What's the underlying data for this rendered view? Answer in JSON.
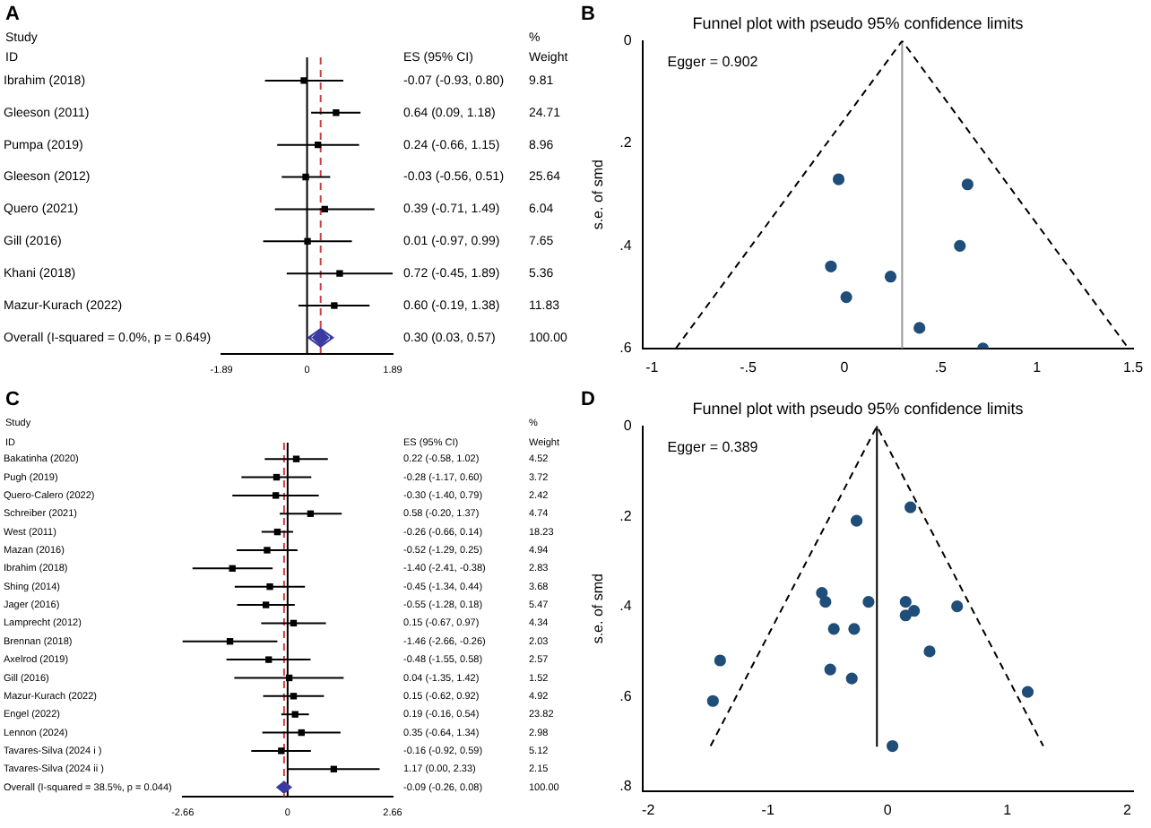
{
  "chart_data": [
    {
      "type": "scatter",
      "orientation": "horizontal",
      "categories": [
        "Ibrahim (2018)",
        "Gleeson (2011)",
        "Pumpa (2019)",
        "Gleeson (2012)",
        "Quero (2021)",
        "Gill (2016)",
        "Khani (2018)",
        "Mazur-Kurach (2022)",
        "Overall (I-squared = 0.0%, p = 0.649)"
      ],
      "series": [
        {
          "color": "#000000",
          "marker": "square",
          "values": [
            -0.07,
            0.64,
            0.24,
            -0.03,
            0.39,
            0.01,
            0.72,
            0.6,
            null
          ],
          "errors": [
            [
              -0.93,
              0.8
            ],
            [
              0.09,
              1.18
            ],
            [
              -0.66,
              1.15
            ],
            [
              -0.56,
              0.51
            ],
            [
              -0.71,
              1.49
            ],
            [
              -0.97,
              0.99
            ],
            [
              -0.45,
              1.89
            ],
            [
              -0.19,
              1.38
            ],
            null
          ]
        },
        {
          "color": "#3a3aa0",
          "values": [
            null,
            null,
            null,
            null,
            null,
            null,
            null,
            null,
            0.3
          ],
          "errors": [
            null,
            null,
            null,
            null,
            null,
            null,
            null,
            null,
            [
              0.03,
              0.57
            ]
          ]
        }
      ],
      "xlim": [
        -1.89,
        1.89
      ],
      "xticks": [
        -1.89,
        0,
        1.89
      ],
      "ref_lines": [
        {
          "axis": "x",
          "value": 0,
          "color": "#000000"
        },
        {
          "axis": "x",
          "value": 0.3,
          "color": "#d04040",
          "line_style": "dashed"
        }
      ],
      "annotations": [
        "A",
        "Study",
        "ID",
        "ES (95% CI)",
        "%",
        "Weight",
        "-0.07 (-0.93, 0.80)",
        "0.64 (0.09, 1.18)",
        "0.24 (-0.66, 1.15)",
        "-0.03 (-0.56, 0.51)",
        "0.39 (-0.71, 1.49)",
        "0.01 (-0.97, 0.99)",
        "0.72 (-0.45, 1.89)",
        "0.60 (-0.19, 1.38)",
        "0.30 (0.03, 0.57)",
        "9.81",
        "24.71",
        "8.96",
        "25.64",
        "6.04",
        "7.65",
        "5.36",
        "11.83",
        "100.00"
      ]
    },
    {
      "type": "scatter",
      "title": "Funnel plot with pseudo 95% confidence limits",
      "ylabel": "s.e. of smd",
      "series": [
        {
          "color": "#1f4e79",
          "marker": "circle",
          "x": [
            -0.07,
            0.64,
            0.24,
            -0.03,
            0.39,
            0.01,
            0.72,
            0.6
          ],
          "values": [
            0.44,
            0.28,
            0.46,
            0.27,
            0.56,
            0.5,
            0.6,
            0.4
          ]
        },
        {
          "type": "line",
          "color": "#000000",
          "marker": "none",
          "line_style": "dashed",
          "x": [
            -0.876,
            0.3,
            1.476
          ],
          "values": [
            0.6,
            0,
            0.6
          ]
        },
        {
          "type": "line",
          "color": "#999999",
          "marker": "none",
          "line_style": "solid",
          "x": [
            0.3,
            0.3
          ],
          "values": [
            0,
            0.6
          ]
        }
      ],
      "xlim": [
        -1.05,
        1.5
      ],
      "xticks": [
        -1,
        {
          "value": -0.5,
          "label": "-.5"
        },
        0,
        {
          "value": 0.5,
          "label": ".5"
        },
        1,
        1.5
      ],
      "ylim": [
        0.6,
        0
      ],
      "yticks": [
        0,
        {
          "value": 0.2,
          "label": ".2"
        },
        {
          "value": 0.4,
          "label": ".4"
        },
        {
          "value": 0.6,
          "label": ".6"
        }
      ],
      "annotations": [
        "B",
        "Egger = 0.902"
      ]
    },
    {
      "type": "scatter",
      "orientation": "horizontal",
      "categories": [
        "Bakatinha (2020)",
        "Pugh (2019)",
        "Quero-Calero (2022)",
        "Schreiber (2021)",
        "West (2011)",
        "Mazan (2016)",
        "Ibrahim (2018)",
        "Shing (2014)",
        "Jager (2016)",
        "Lamprecht (2012)",
        "Brennan (2018)",
        "Axelrod (2019)",
        "Gill (2016)",
        "Mazur-Kurach (2022)",
        "Engel (2022)",
        "Lennon (2024)",
        "Tavares-Silva (2024 i )",
        "Tavares-Silva (2024 ii )",
        "Overall (I-squared = 38.5%, p = 0.044)"
      ],
      "series": [
        {
          "color": "#000000",
          "marker": "square",
          "values": [
            0.22,
            -0.28,
            -0.3,
            0.58,
            -0.26,
            -0.52,
            -1.4,
            -0.45,
            -0.55,
            0.15,
            -1.46,
            -0.48,
            0.04,
            0.15,
            0.19,
            0.35,
            -0.16,
            1.17,
            null
          ],
          "errors": [
            [
              -0.58,
              1.02
            ],
            [
              -1.17,
              0.6
            ],
            [
              -1.4,
              0.79
            ],
            [
              -0.2,
              1.37
            ],
            [
              -0.66,
              0.14
            ],
            [
              -1.29,
              0.25
            ],
            [
              -2.41,
              -0.38
            ],
            [
              -1.34,
              0.44
            ],
            [
              -1.28,
              0.18
            ],
            [
              -0.67,
              0.97
            ],
            [
              -2.66,
              -0.26
            ],
            [
              -1.55,
              0.58
            ],
            [
              -1.35,
              1.42
            ],
            [
              -0.62,
              0.92
            ],
            [
              -0.16,
              0.54
            ],
            [
              -0.64,
              1.34
            ],
            [
              -0.92,
              0.59
            ],
            [
              0.0,
              2.33
            ],
            null
          ]
        },
        {
          "color": "#3a3aa0",
          "values": [
            null,
            null,
            null,
            null,
            null,
            null,
            null,
            null,
            null,
            null,
            null,
            null,
            null,
            null,
            null,
            null,
            null,
            null,
            -0.09
          ],
          "errors": [
            null,
            null,
            null,
            null,
            null,
            null,
            null,
            null,
            null,
            null,
            null,
            null,
            null,
            null,
            null,
            null,
            null,
            null,
            [
              -0.26,
              0.08
            ]
          ]
        }
      ],
      "xlim": [
        -2.66,
        2.66
      ],
      "xticks": [
        -2.66,
        0,
        2.66
      ],
      "ref_lines": [
        {
          "axis": "x",
          "value": 0,
          "color": "#000000"
        },
        {
          "axis": "x",
          "value": -0.09,
          "color": "#d04040",
          "line_style": "dashed"
        }
      ],
      "annotations": [
        "C",
        "Study",
        "ID",
        "ES (95% CI)",
        "%",
        "Weight",
        "0.22 (-0.58, 1.02)",
        "-0.28 (-1.17, 0.60)",
        "-0.30 (-1.40, 0.79)",
        "0.58 (-0.20, 1.37)",
        "-0.26 (-0.66, 0.14)",
        "-0.52 (-1.29, 0.25)",
        "-1.40 (-2.41, -0.38)",
        "-0.45 (-1.34, 0.44)",
        "-0.55 (-1.28, 0.18)",
        "0.15 (-0.67, 0.97)",
        "-1.46 (-2.66, -0.26)",
        "-0.48 (-1.55, 0.58)",
        "0.04 (-1.35, 1.42)",
        "0.15 (-0.62, 0.92)",
        "0.19 (-0.16, 0.54)",
        "0.35 (-0.64, 1.34)",
        "-0.16 (-0.92, 0.59)",
        "1.17 (0.00, 2.33)",
        "-0.09 (-0.26, 0.08)",
        "4.52",
        "3.72",
        "2.42",
        "4.74",
        "18.23",
        "4.94",
        "2.83",
        "3.68",
        "5.47",
        "4.34",
        "2.03",
        "2.57",
        "1.52",
        "4.92",
        "23.82",
        "2.98",
        "5.12",
        "2.15",
        "100.00"
      ]
    },
    {
      "type": "scatter",
      "title": "Funnel plot with pseudo 95% confidence limits",
      "ylabel": "s.e. of smd",
      "series": [
        {
          "color": "#1f4e79",
          "marker": "circle",
          "x": [
            0.22,
            -0.28,
            -0.3,
            0.58,
            -0.26,
            -0.52,
            -1.4,
            -0.45,
            -0.55,
            0.15,
            -1.46,
            -0.48,
            0.04,
            0.15,
            0.19,
            0.35,
            -0.16,
            1.17
          ],
          "values": [
            0.41,
            0.45,
            0.56,
            0.4,
            0.21,
            0.39,
            0.52,
            0.45,
            0.37,
            0.42,
            0.61,
            0.54,
            0.71,
            0.39,
            0.18,
            0.5,
            0.39,
            0.59
          ]
        },
        {
          "type": "line",
          "color": "#000000",
          "marker": "none",
          "line_style": "dashed",
          "x": [
            -1.48,
            -0.09,
            1.3
          ],
          "values": [
            0.71,
            0,
            0.71
          ]
        },
        {
          "type": "line",
          "color": "#000000",
          "marker": "none",
          "line_style": "solid",
          "x": [
            -0.09,
            -0.09
          ],
          "values": [
            0,
            0.71
          ]
        }
      ],
      "xlim": [
        -2.05,
        2.05
      ],
      "xticks": [
        -2,
        -1,
        0,
        1,
        2
      ],
      "ylim": [
        0.81,
        0
      ],
      "yticks": [
        0,
        {
          "value": 0.2,
          "label": ".2"
        },
        {
          "value": 0.4,
          "label": ".4"
        },
        {
          "value": 0.6,
          "label": ".6"
        },
        {
          "value": 0.8,
          "label": ".8"
        }
      ],
      "annotations": [
        "D",
        "Egger = 0.389"
      ]
    }
  ]
}
